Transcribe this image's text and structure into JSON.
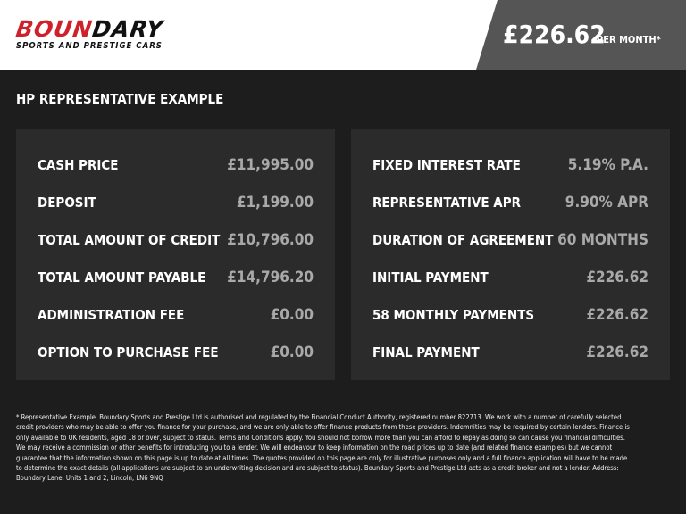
{
  "brand": {
    "logo_main_a": "BOUN",
    "logo_main_b": "DARY",
    "logo_sub": "SPORTS AND PRESTIGE CARS"
  },
  "header": {
    "price": "£226.62",
    "per_month": "PER MONTH*"
  },
  "colors": {
    "logo_red": "#d0202a",
    "panel": "#2b2b2b",
    "background": "#1d1d1d",
    "price_box": "#555555"
  },
  "title": "HP REPRESENTATIVE EXAMPLE",
  "left": [
    {
      "label": "CASH PRICE",
      "value": "£11,995.00"
    },
    {
      "label": "DEPOSIT",
      "value": "£1,199.00"
    },
    {
      "label": "TOTAL AMOUNT OF CREDIT",
      "value": "£10,796.00"
    },
    {
      "label": "TOTAL AMOUNT PAYABLE",
      "value": "£14,796.20"
    },
    {
      "label": "ADMINISTRATION FEE",
      "value": "£0.00"
    },
    {
      "label": "OPTION TO PURCHASE FEE",
      "value": "£0.00"
    }
  ],
  "right": [
    {
      "label": "FIXED INTEREST RATE",
      "value": "5.19% P.A."
    },
    {
      "label": "REPRESENTATIVE APR",
      "value": "9.90% APR"
    },
    {
      "label": "DURATION OF AGREEMENT",
      "value": "60 MONTHS"
    },
    {
      "label": "INITIAL PAYMENT",
      "value": "£226.62"
    },
    {
      "label": "58 MONTHLY PAYMENTS",
      "value": "£226.62"
    },
    {
      "label": "FINAL PAYMENT",
      "value": "£226.62"
    }
  ],
  "disclaimer": "* Representative Example. Boundary Sports and Prestige Ltd is authorised and regulated by the Financial Conduct Authority, registered number 822713. We work with a number of carefully selected credit providers who may be able to offer you finance for your purchase, and we are only able to offer finance products from these providers. Indemnities may be required by certain lenders. Finance is only available to UK residents, aged 18 or over, subject to status. Terms and Conditions apply. You should not borrow more than you can afford to repay as doing so can cause you financial difficulties. We may receive a commission or other benefits for introducing you to a lender. We will endeavour to keep information on the road prices up to date (and related finance examples) but we cannot guarantee that the information shown on this page is up to date at all times. The quotes provided on this page are only for illustrative purposes only and a full finance application will have to be made to determine the exact details (all applications are subject to an underwriting decision and are subject to status). Boundary Sports and Prestige Ltd acts as a credit broker and not a lender. Address: Boundary Lane, Units 1 and 2, Lincoln, LN6 9NQ"
}
